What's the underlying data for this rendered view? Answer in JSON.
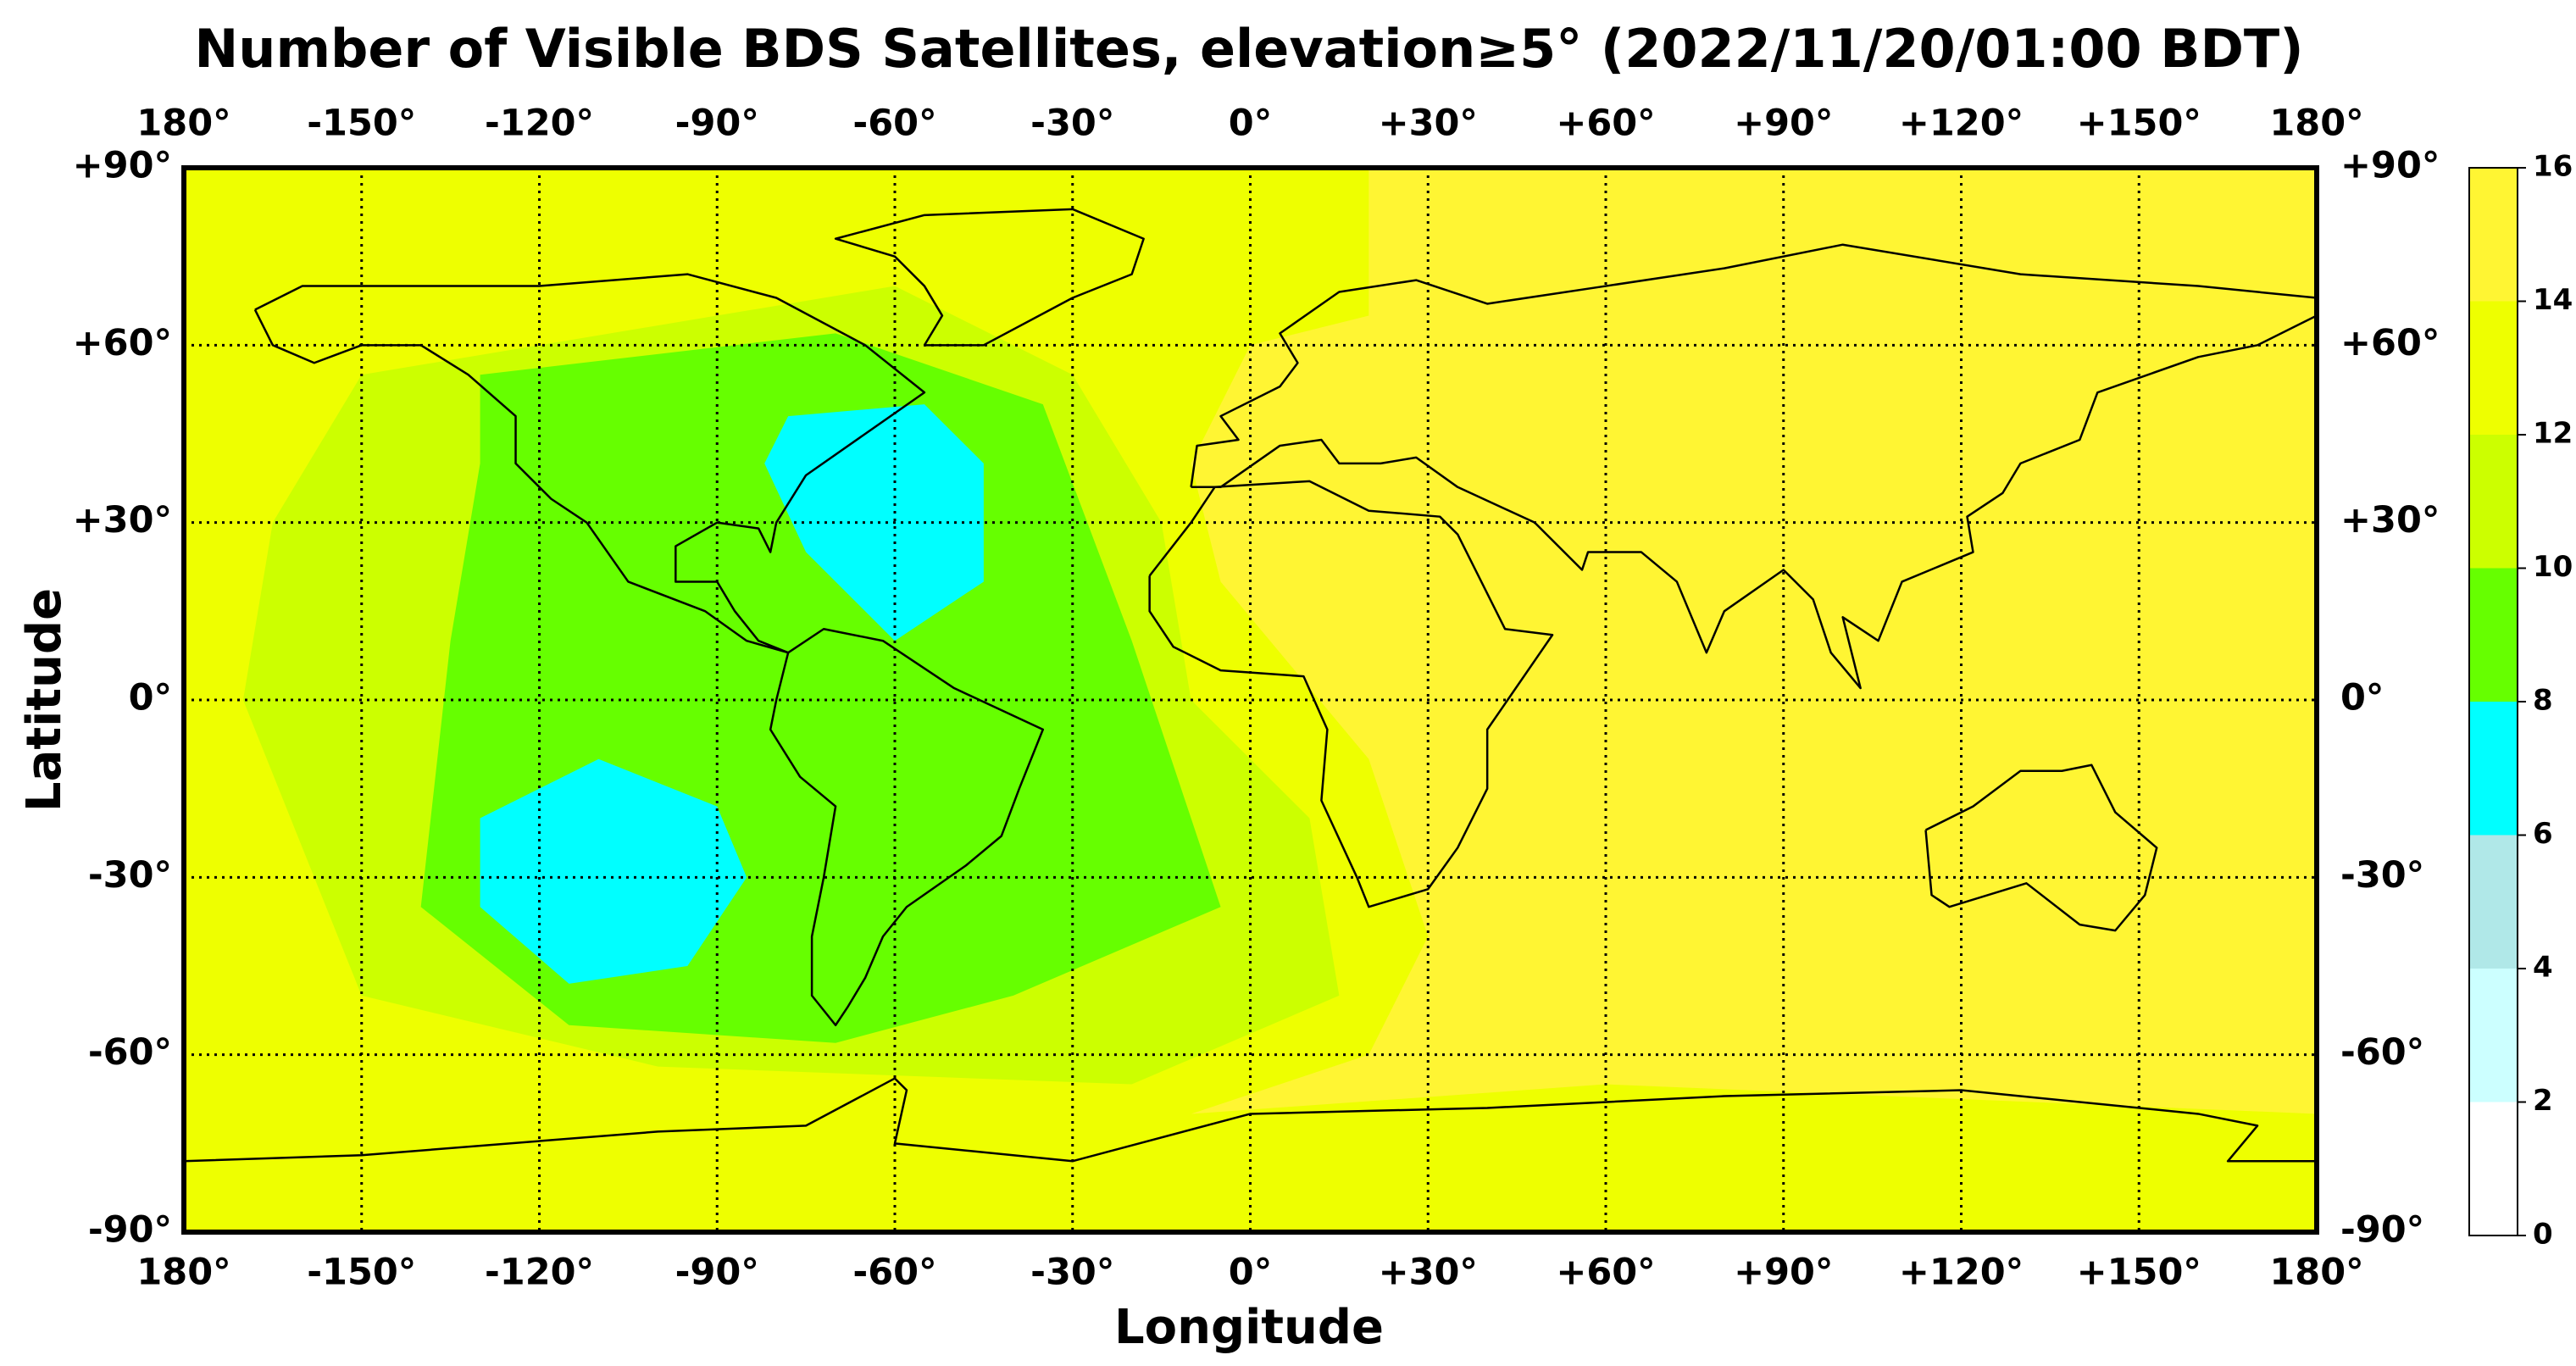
{
  "chart_data": {
    "type": "filled-map",
    "title": "Number of Visible BDS Satellites, elevation≥5° (2022/11/20/01:00 BDT)",
    "xlabel": "Longitude",
    "ylabel": "Latitude",
    "xlim": [
      -180,
      180
    ],
    "ylim": [
      -90,
      90
    ],
    "xticks": [
      {
        "value": -180,
        "label": "180°"
      },
      {
        "value": -150,
        "label": "-150°"
      },
      {
        "value": -120,
        "label": "-120°"
      },
      {
        "value": -90,
        "label": "-90°"
      },
      {
        "value": -60,
        "label": "-60°"
      },
      {
        "value": -30,
        "label": "-30°"
      },
      {
        "value": 0,
        "label": "0°"
      },
      {
        "value": 30,
        "label": "+30°"
      },
      {
        "value": 60,
        "label": "+60°"
      },
      {
        "value": 90,
        "label": "+90°"
      },
      {
        "value": 120,
        "label": "+120°"
      },
      {
        "value": 150,
        "label": "+150°"
      },
      {
        "value": 180,
        "label": "180°"
      }
    ],
    "yticks": [
      {
        "value": 90,
        "label": "+90°"
      },
      {
        "value": 60,
        "label": "+60°"
      },
      {
        "value": 30,
        "label": "+30°"
      },
      {
        "value": 0,
        "label": "0°"
      },
      {
        "value": -30,
        "label": "-30°"
      },
      {
        "value": -60,
        "label": "-60°"
      },
      {
        "value": -90,
        "label": "-90°"
      }
    ],
    "grid": true,
    "colorbar": {
      "ticks": [
        0,
        2,
        4,
        6,
        8,
        10,
        12,
        14,
        16
      ],
      "colors": [
        "#ffffff",
        "#ccffff",
        "#b0e8e8",
        "#00ffff",
        "#66ff00",
        "#ccff00",
        "#eeff00",
        "#fff533"
      ]
    },
    "regions": [
      {
        "value": 15,
        "lon": [
          -180,
          180,
          180,
          -180
        ],
        "lat": [
          90,
          90,
          -90,
          -90
        ]
      },
      {
        "value": 13,
        "lon": [
          -180,
          20,
          20,
          0,
          -10,
          -5,
          20,
          30,
          20,
          -10,
          60,
          180,
          180,
          -180
        ],
        "lat": [
          90,
          90,
          65,
          60,
          40,
          20,
          -10,
          -40,
          -60,
          -70,
          -65,
          -70,
          -90,
          -90
        ]
      },
      {
        "value": 11,
        "lon": [
          -150,
          -60,
          -30,
          -15,
          -10,
          10,
          15,
          -20,
          -100,
          -150,
          -170,
          -165
        ],
        "lat": [
          55,
          70,
          55,
          30,
          0,
          -20,
          -50,
          -65,
          -62,
          -50,
          0,
          30
        ]
      },
      {
        "value": 9,
        "lon": [
          -130,
          -70,
          -35,
          -20,
          -10,
          -5,
          -40,
          -70,
          -115,
          -140,
          -135,
          -130
        ],
        "lat": [
          55,
          62,
          50,
          10,
          -20,
          -35,
          -50,
          -58,
          -55,
          -35,
          10,
          40
        ]
      },
      {
        "value": 7,
        "lon": [
          -78,
          -55,
          -45,
          -45,
          -60,
          -75,
          -82
        ],
        "lat": [
          48,
          50,
          40,
          20,
          10,
          25,
          40
        ]
      },
      {
        "value": 7,
        "lon": [
          -130,
          -110,
          -90,
          -85,
          -95,
          -115,
          -130
        ],
        "lat": [
          -20,
          -10,
          -18,
          -30,
          -45,
          -48,
          -35
        ]
      }
    ]
  }
}
